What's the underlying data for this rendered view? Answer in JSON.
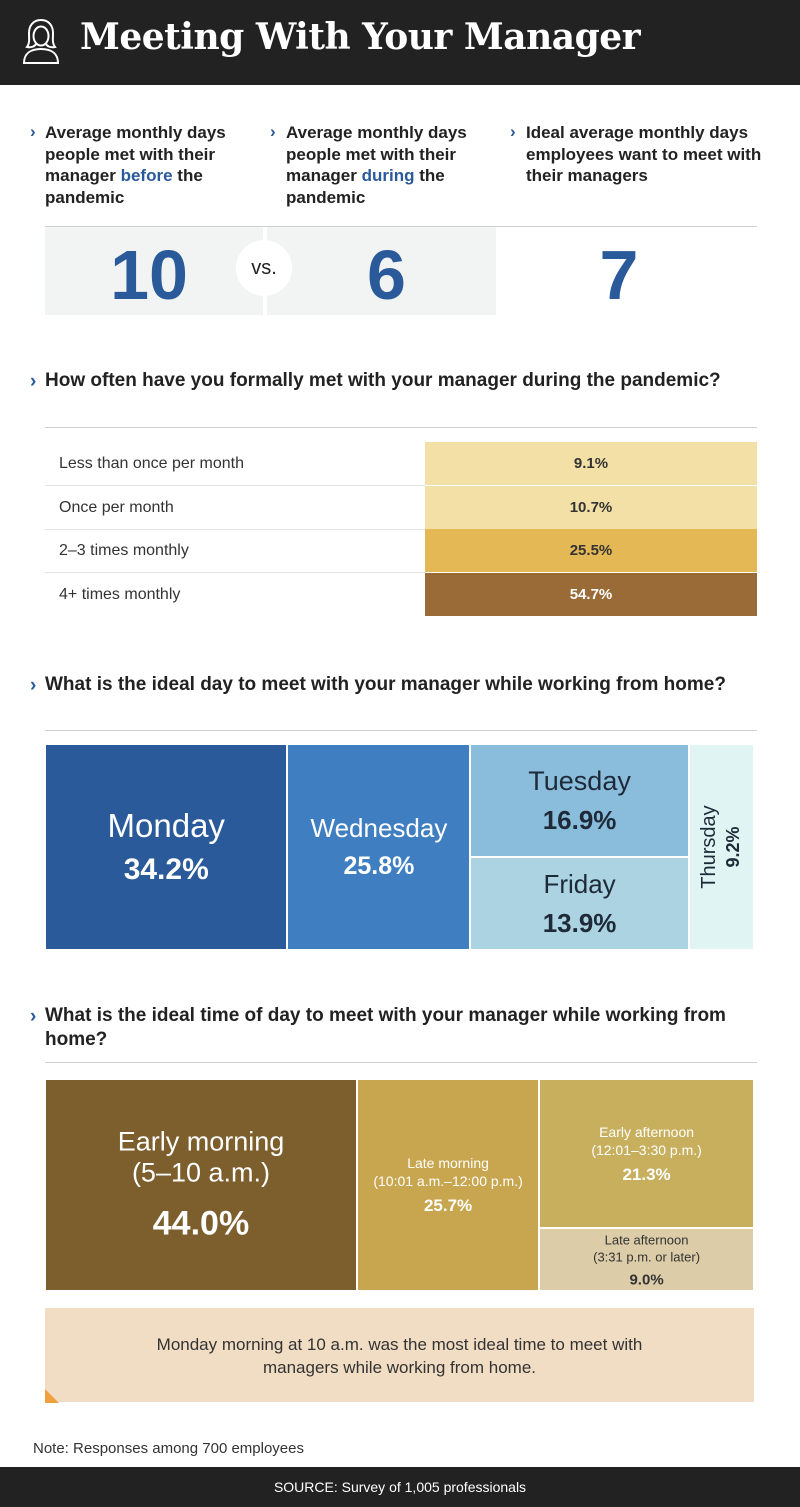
{
  "header": {
    "title": "Meeting With Your Manager",
    "icon": "person-icon"
  },
  "stats": [
    {
      "before": "Average monthly days people met with their manager ",
      "emphasis": "before",
      "after": " the pandemic",
      "value": "10"
    },
    {
      "before": "Average monthly days people met with their manager ",
      "emphasis": "during",
      "after": " the pandemic",
      "value": "6"
    },
    {
      "before": "Ideal average monthly days employees want to meet with their managers",
      "emphasis": "",
      "after": "",
      "value": "7"
    }
  ],
  "vs_label": "vs.",
  "chart_data": [
    {
      "type": "bar",
      "title": "How often have you formally met with your manager during the pandemic?",
      "categories": [
        "Less than once per month",
        "Once per month",
        "2–3 times monthly",
        "4+ times monthly"
      ],
      "values": [
        9.1,
        10.7,
        25.5,
        54.7
      ],
      "labels": [
        "9.1%",
        "10.7%",
        "25.5%",
        "54.7%"
      ],
      "colors": [
        "#f3e0a6",
        "#f3e0a6",
        "#e4b955",
        "#9a6a37"
      ]
    },
    {
      "type": "treemap",
      "title": "What is the ideal day to meet with your manager while working from home?",
      "categories": [
        "Monday",
        "Wednesday",
        "Tuesday",
        "Friday",
        "Thursday"
      ],
      "values": [
        34.2,
        25.8,
        16.9,
        13.9,
        9.2
      ],
      "labels": [
        "34.2%",
        "25.8%",
        "16.9%",
        "13.9%",
        "9.2%"
      ],
      "colors": [
        "#2a5a99",
        "#3f7ec0",
        "#8abddc",
        "#acd3e2",
        "#e0f4f3"
      ]
    },
    {
      "type": "treemap",
      "title": "What is the ideal time of day to meet with your manager while working from home?",
      "categories": [
        "Early morning",
        "Late morning",
        "Early afternoon",
        "Late afternoon"
      ],
      "sublabels": [
        "(5–10 a.m.)",
        "(10:01 a.m.–12:00 p.m.)",
        "(12:01–3:30 p.m.)",
        "(3:31 p.m. or later)"
      ],
      "values": [
        44.0,
        25.7,
        21.3,
        9.0
      ],
      "labels": [
        "44.0%",
        "25.7%",
        "21.3%",
        "9.0%"
      ],
      "colors": [
        "#7d5f2e",
        "#c8a64f",
        "#c7af5d",
        "#dccda8"
      ]
    }
  ],
  "callout": "Monday morning at 10 a.m. was the most ideal time to meet with managers while working from home.",
  "note": "Note: Responses among 700 employees",
  "source": "SOURCE: Survey of 1,005 professionals"
}
